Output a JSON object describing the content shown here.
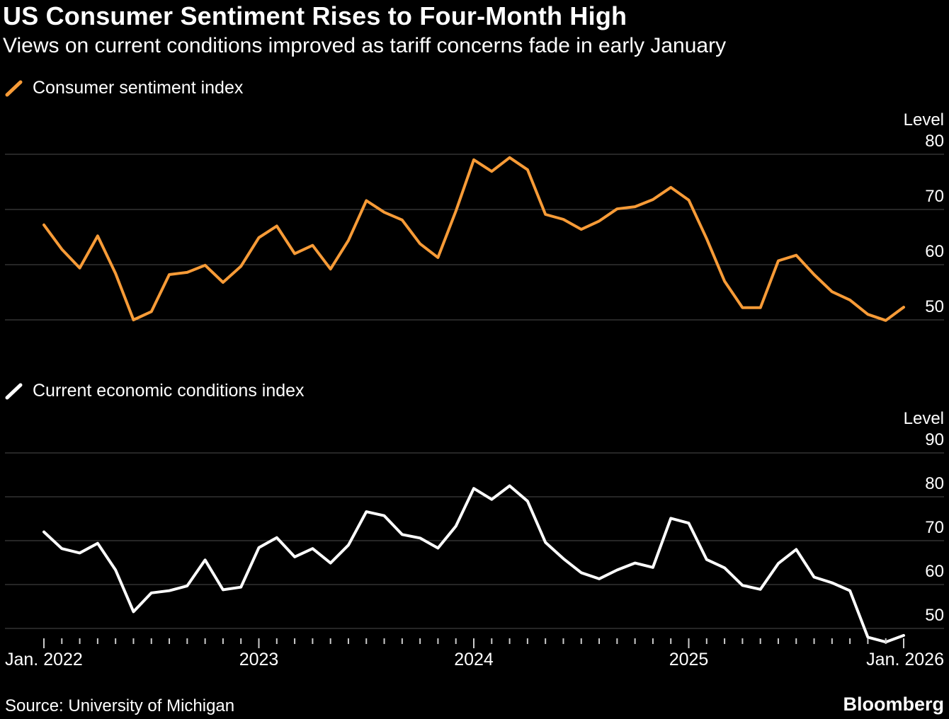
{
  "header": {
    "title": "US Consumer Sentiment Rises to Four-Month High",
    "subtitle": "Views on current conditions improved as tariff concerns fade in early January"
  },
  "chart_data": [
    {
      "type": "line",
      "series_name": "Consumer sentiment index",
      "color": "#f79b37",
      "ylabel": "Level",
      "y_ticks": [
        80,
        70,
        60,
        50
      ],
      "x_start": "Jan. 2022",
      "x_end": "Jan. 2026",
      "frequency": "monthly",
      "grid": true,
      "legend_position": "top-left",
      "values": [
        67.2,
        62.8,
        59.4,
        65.2,
        58.4,
        50.0,
        51.5,
        58.2,
        58.6,
        59.9,
        56.8,
        59.7,
        64.9,
        67.0,
        62.0,
        63.5,
        59.2,
        64.4,
        71.6,
        69.5,
        68.1,
        63.8,
        61.3,
        69.7,
        79.0,
        76.9,
        79.4,
        77.2,
        69.1,
        68.2,
        66.4,
        67.9,
        70.1,
        70.5,
        71.8,
        74.0,
        71.7,
        64.7,
        57.0,
        52.2,
        52.2,
        60.7,
        61.7,
        58.2,
        55.1,
        53.6,
        51.0,
        49.9,
        52.3
      ]
    },
    {
      "type": "line",
      "series_name": "Current economic conditions index",
      "color": "#ffffff",
      "ylabel": "Level",
      "y_ticks": [
        90,
        80,
        70,
        60,
        50
      ],
      "x_start": "Jan. 2022",
      "x_end": "Jan. 2026",
      "frequency": "monthly",
      "grid": true,
      "legend_position": "top-left",
      "values": [
        72.0,
        68.2,
        67.2,
        69.4,
        63.3,
        53.8,
        58.1,
        58.6,
        59.7,
        65.6,
        58.8,
        59.4,
        68.4,
        70.7,
        66.3,
        68.2,
        64.9,
        69.0,
        76.6,
        75.7,
        71.4,
        70.6,
        68.3,
        73.3,
        81.9,
        79.4,
        82.5,
        79.0,
        69.6,
        65.9,
        62.7,
        61.3,
        63.3,
        64.9,
        63.9,
        75.1,
        74.0,
        65.7,
        63.8,
        59.8,
        58.9,
        64.8,
        68.0,
        61.7,
        60.4,
        58.6,
        48.0,
        46.9,
        48.4
      ]
    }
  ],
  "x_axis": {
    "labels": [
      {
        "text": "Jan. 2022",
        "index": 0,
        "align": "left"
      },
      {
        "text": "2023",
        "index": 12,
        "align": "center"
      },
      {
        "text": "2024",
        "index": 24,
        "align": "center"
      },
      {
        "text": "2025",
        "index": 36,
        "align": "center"
      },
      {
        "text": "Jan. 2026",
        "index": 48,
        "align": "right"
      }
    ],
    "tick_count": 49,
    "year_tick_indices": [
      0,
      12,
      24,
      36,
      48
    ]
  },
  "footer": {
    "source": "Source: University of Michigan",
    "brand": "Bloomberg"
  }
}
